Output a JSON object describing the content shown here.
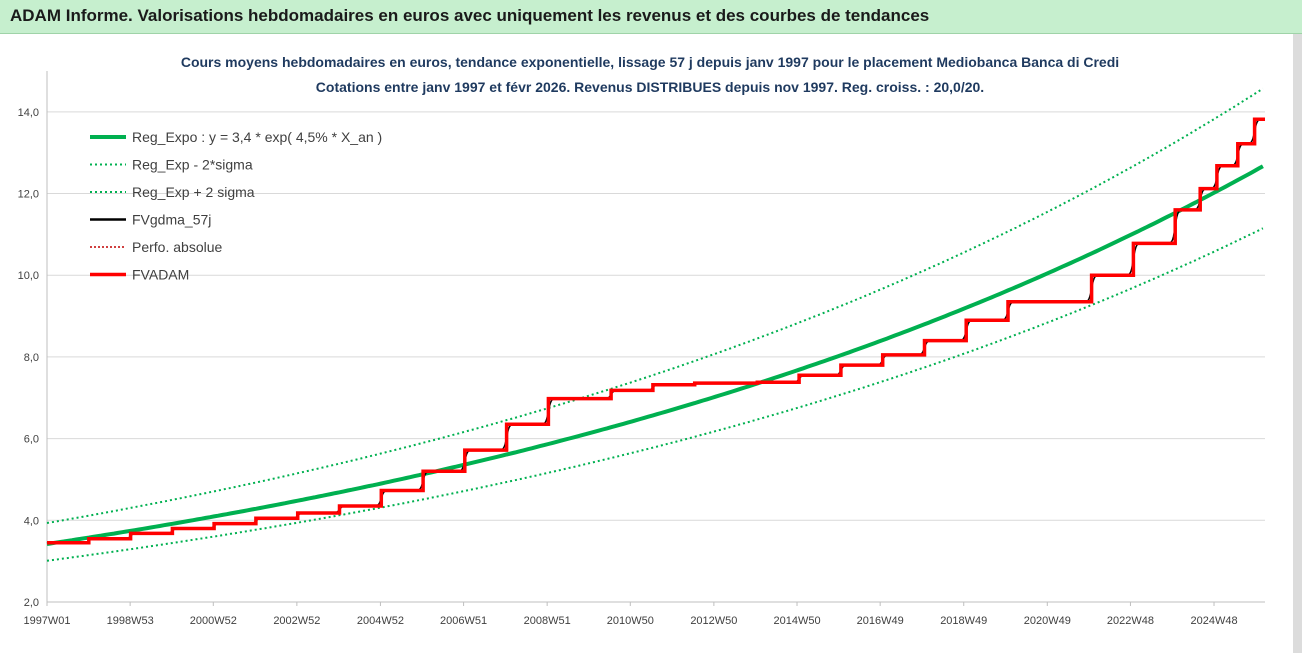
{
  "banner": {
    "title": "ADAM Informe. Valorisations hebdomadaires en euros avec uniquement les revenus et des courbes de tendances"
  },
  "chart_data": {
    "type": "line",
    "subtitle_line1": "Cours moyens hebdomadaires en euros, tendance exponentielle, lissage 57 j depuis janv 1997 pour le placement Mediobanca Banca di Credi",
    "subtitle_line2": "Cotations entre janv 1997 et févr 2026. Revenus DISTRIBUES depuis nov 1997. Reg. croiss. : 20,0/20.",
    "xlim": [
      1997.0,
      2026.15
    ],
    "ylim": [
      2,
      15
    ],
    "y_ticks": [
      2,
      4,
      6,
      8,
      10,
      12,
      14
    ],
    "y_tick_labels": [
      "2,0",
      "4,0",
      "6,0",
      "8,0",
      "10,0",
      "12,0",
      "14,0"
    ],
    "x_ticks": [
      1997.0,
      1998.99,
      2000.98,
      2002.98,
      2004.98,
      2006.97,
      2008.97,
      2010.96,
      2012.96,
      2014.95,
      2016.94,
      2018.94,
      2020.94,
      2022.93,
      2024.93
    ],
    "x_tick_labels": [
      "1997W01",
      "1998W53",
      "2000W52",
      "2002W52",
      "2004W52",
      "2006W51",
      "2008W51",
      "2010W50",
      "2012W50",
      "2014W50",
      "2016W49",
      "2018W49",
      "2020W49",
      "2022W48",
      "2024W48"
    ],
    "grid": "horizontal",
    "legend_position": "top-left",
    "colors": {
      "reg": "#00b050",
      "fv": "#000000",
      "perfo": "#c00000",
      "adam": "#ff0000"
    },
    "regression": {
      "a": 3.42,
      "rate": 0.045,
      "sigma_band": [
        0.88,
        1.15
      ]
    },
    "series": [
      {
        "name": "Reg_Expo : y = 3,4 * exp( 4,5% *  X_an )",
        "style": "solid-thick-green"
      },
      {
        "name": "Reg_Exp - 2*sigma",
        "style": "dotted-green"
      },
      {
        "name": "Reg_Exp + 2 sigma",
        "style": "dotted-green"
      },
      {
        "name": "FVgdma_57j",
        "style": "solid-black"
      },
      {
        "name": "Perfo. absolue",
        "style": "dotted-red"
      },
      {
        "name": "FVADAM",
        "style": "solid-thick-red",
        "steps": [
          [
            1997.0,
            3.45
          ],
          [
            1998.0,
            3.55
          ],
          [
            1999.0,
            3.68
          ],
          [
            2000.0,
            3.8
          ],
          [
            2001.0,
            3.92
          ],
          [
            2002.0,
            4.05
          ],
          [
            2003.0,
            4.18
          ],
          [
            2004.0,
            4.35
          ],
          [
            2005.0,
            4.73
          ],
          [
            2006.0,
            5.2
          ],
          [
            2007.0,
            5.72
          ],
          [
            2008.0,
            6.35
          ],
          [
            2009.0,
            6.98
          ],
          [
            2010.5,
            7.18
          ],
          [
            2011.5,
            7.32
          ],
          [
            2012.5,
            7.36
          ],
          [
            2014.0,
            7.38
          ],
          [
            2015.0,
            7.55
          ],
          [
            2016.0,
            7.8
          ],
          [
            2017.0,
            8.05
          ],
          [
            2018.0,
            8.4
          ],
          [
            2019.0,
            8.9
          ],
          [
            2020.0,
            9.35
          ],
          [
            2022.0,
            10.0
          ],
          [
            2023.0,
            10.78
          ],
          [
            2024.0,
            11.6
          ],
          [
            2024.6,
            12.12
          ],
          [
            2025.0,
            12.68
          ],
          [
            2025.5,
            13.22
          ],
          [
            2025.9,
            13.82
          ]
        ]
      }
    ]
  }
}
